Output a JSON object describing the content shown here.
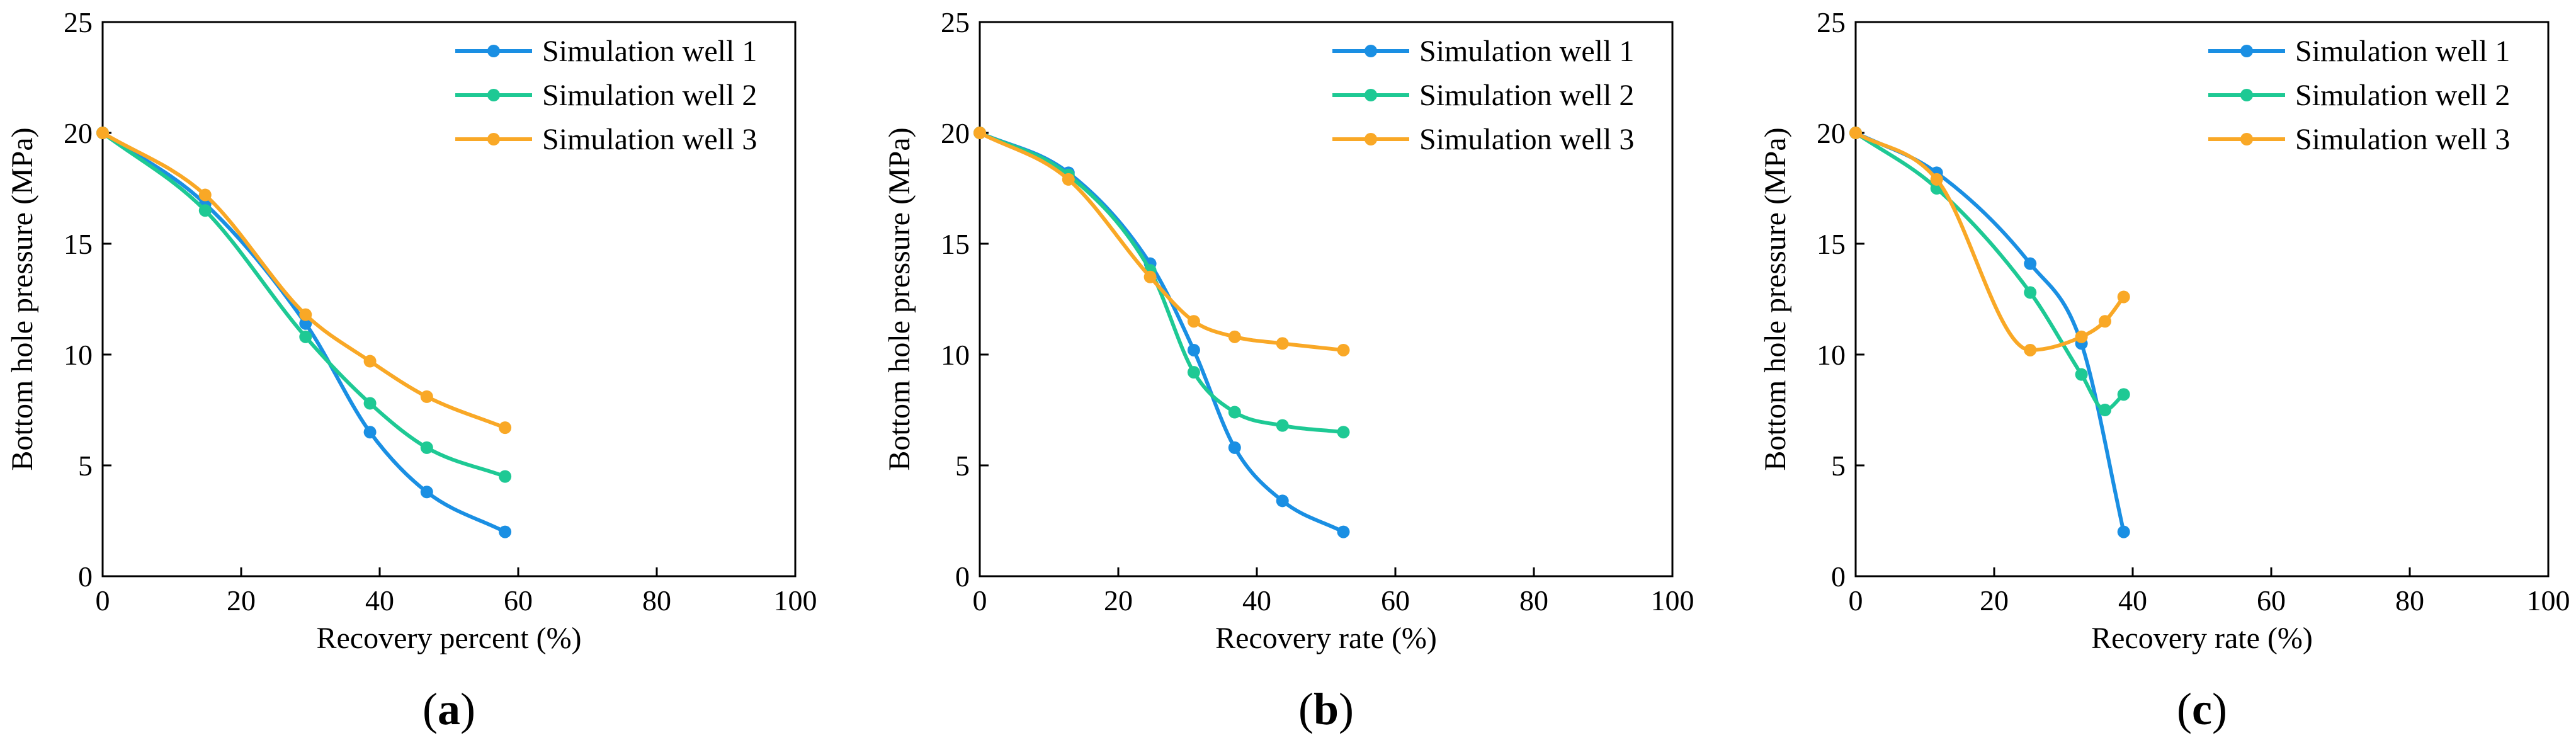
{
  "colors": {
    "series": [
      "#1a8fe3",
      "#1ec994",
      "#f9a826"
    ],
    "axis": "#000000"
  },
  "chart_data": [
    {
      "type": "line",
      "panel_label_open": "(",
      "panel_label_letter": "a",
      "panel_label_close": ")",
      "xlabel": "Recovery percent (%)",
      "ylabel": "Bottom hole pressure (MPa)",
      "xlim": [
        0,
        100
      ],
      "ylim": [
        0,
        25
      ],
      "xticks": [
        "0",
        "20",
        "40",
        "60",
        "80",
        "100"
      ],
      "yticks": [
        "0",
        "5",
        "10",
        "15",
        "20",
        "25"
      ],
      "legend": "top-right",
      "grid": false,
      "series": [
        {
          "name": "Simulation well 1",
          "x": [
            0,
            14.8,
            29.3,
            38.6,
            46.8,
            58.1
          ],
          "y": [
            20,
            16.8,
            11.4,
            6.5,
            3.8,
            2.0
          ]
        },
        {
          "name": "Simulation well 2",
          "x": [
            0,
            14.8,
            29.3,
            38.6,
            46.8,
            58.1
          ],
          "y": [
            20,
            16.5,
            10.8,
            7.8,
            5.8,
            4.5
          ]
        },
        {
          "name": "Simulation well 3",
          "x": [
            0,
            14.8,
            29.3,
            38.6,
            46.8,
            58.1
          ],
          "y": [
            20,
            17.2,
            11.8,
            9.7,
            8.1,
            6.7
          ]
        }
      ]
    },
    {
      "type": "line",
      "panel_label_open": "(",
      "panel_label_letter": "b",
      "panel_label_close": ")",
      "xlabel": "Recovery rate (%)",
      "ylabel": "Bottom hole pressure (MPa)",
      "xlim": [
        0,
        100
      ],
      "ylim": [
        0,
        25
      ],
      "xticks": [
        "0",
        "20",
        "40",
        "60",
        "80",
        "100"
      ],
      "yticks": [
        "0",
        "5",
        "10",
        "15",
        "20",
        "25"
      ],
      "legend": "top-right",
      "grid": false,
      "series": [
        {
          "name": "Simulation well 1",
          "x": [
            0,
            12.8,
            24.6,
            30.9,
            36.8,
            43.7,
            52.5
          ],
          "y": [
            20,
            18.2,
            14.1,
            10.2,
            5.8,
            3.4,
            2.0
          ]
        },
        {
          "name": "Simulation well 2",
          "x": [
            0,
            12.8,
            24.6,
            30.9,
            36.8,
            43.7,
            52.5
          ],
          "y": [
            20,
            18.1,
            13.8,
            9.2,
            7.4,
            6.8,
            6.5
          ]
        },
        {
          "name": "Simulation well 3",
          "x": [
            0,
            12.8,
            24.6,
            30.9,
            36.8,
            43.7,
            52.5
          ],
          "y": [
            20,
            17.9,
            13.5,
            11.5,
            10.8,
            10.5,
            10.2
          ]
        }
      ]
    },
    {
      "type": "line",
      "panel_label_open": "(",
      "panel_label_letter": "c",
      "panel_label_close": ")",
      "xlabel": "Recovery rate (%)",
      "ylabel": "Bottom hole pressure (MPa)",
      "xlim": [
        0,
        100
      ],
      "ylim": [
        0,
        25
      ],
      "xticks": [
        "0",
        "20",
        "40",
        "60",
        "80",
        "100"
      ],
      "yticks": [
        "0",
        "5",
        "10",
        "15",
        "20",
        "25"
      ],
      "legend": "top-right",
      "grid": false,
      "series": [
        {
          "name": "Simulation well 1",
          "x": [
            0,
            11.7,
            25.2,
            32.6,
            38.7
          ],
          "y": [
            20,
            18.2,
            14.1,
            10.5,
            2.0
          ]
        },
        {
          "name": "Simulation well 2",
          "x": [
            0,
            11.7,
            25.2,
            32.6,
            36.0,
            38.7
          ],
          "y": [
            20,
            17.5,
            12.8,
            9.1,
            7.5,
            8.2
          ]
        },
        {
          "name": "Simulation well 3",
          "x": [
            0,
            11.7,
            25.2,
            32.6,
            36.0,
            38.7
          ],
          "y": [
            20,
            17.9,
            10.2,
            10.8,
            11.5,
            12.6
          ]
        }
      ]
    }
  ]
}
